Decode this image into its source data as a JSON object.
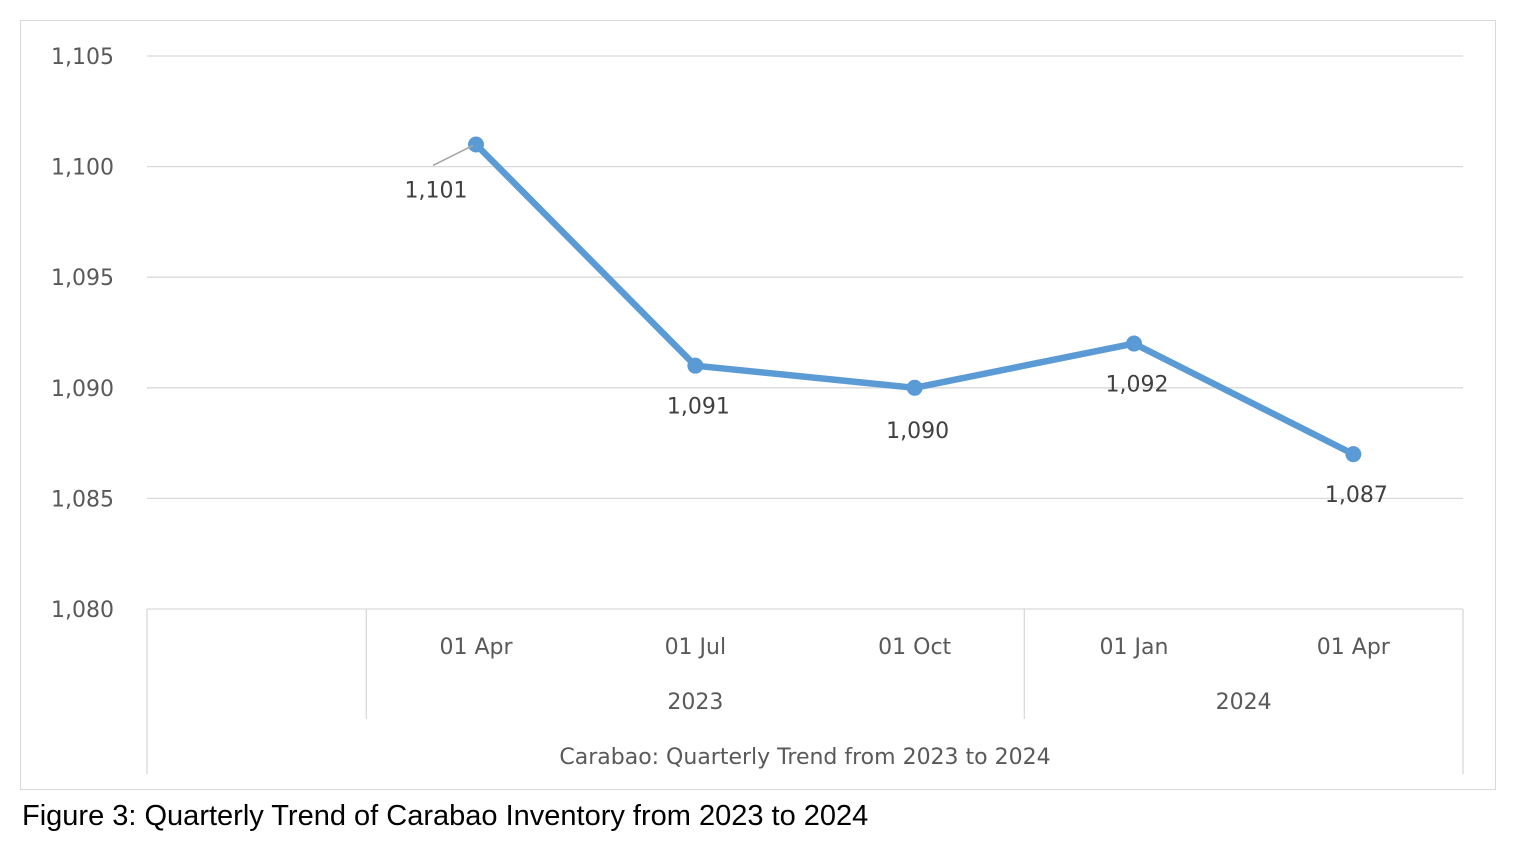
{
  "chart_data": {
    "type": "line",
    "title": "",
    "ylim": [
      1080,
      1105
    ],
    "y_ticks": [
      "1,080",
      "1,085",
      "1,090",
      "1,095",
      "1,100",
      "1,105"
    ],
    "y_tick_values": [
      1080,
      1085,
      1090,
      1095,
      1100,
      1105
    ],
    "categories": [
      "01 Apr",
      "01 Jul",
      "01 Oct",
      "01 Jan",
      "01 Apr"
    ],
    "groups": [
      {
        "label": "2023",
        "start": 0,
        "end": 2
      },
      {
        "label": "2024",
        "start": 3,
        "end": 4
      }
    ],
    "xlabel": "Carabao: Quarterly Trend from 2023 to 2024",
    "grid": true,
    "legend": "none",
    "series": [
      {
        "values": [
          1101,
          1091,
          1090,
          1092,
          1087
        ],
        "labels": [
          "1,101",
          "1,091",
          "1,090",
          "1,092",
          "1,087"
        ],
        "color": "#5b9bd5"
      }
    ]
  },
  "caption": "Figure 3: Quarterly Trend of Carabao Inventory from 2023 to 2024"
}
